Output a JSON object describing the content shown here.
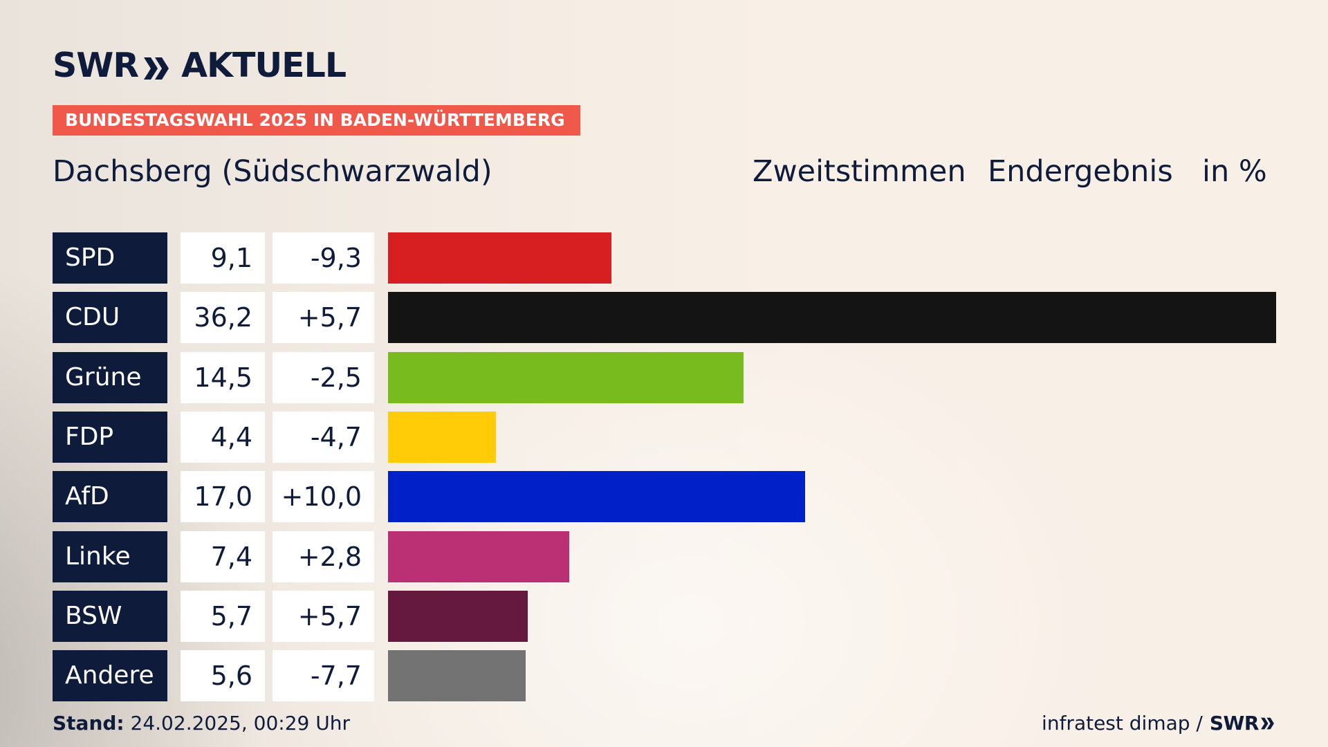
{
  "logo": {
    "brand": "SWR",
    "name": "AKTUELL"
  },
  "banner": "BUNDESTAGSWAHL 2025 IN BADEN-WÜRTTEMBERG",
  "region": "Dachsberg (Südschwarzwald)",
  "header": {
    "votes": "Zweitstimmen",
    "status": "Endergebnis",
    "unit": "in %"
  },
  "footer": {
    "stand_label": "Stand:",
    "stand_value": "24.02.2025, 00:29 Uhr",
    "source": "infratest dimap /",
    "source_brand": "SWR"
  },
  "chart_data": {
    "type": "bar",
    "orientation": "horizontal",
    "categories": [
      "SPD",
      "CDU",
      "Grüne",
      "FDP",
      "AfD",
      "Linke",
      "BSW",
      "Andere"
    ],
    "values": [
      9.1,
      36.2,
      14.5,
      4.4,
      17.0,
      7.4,
      5.7,
      5.6
    ],
    "value_labels": [
      "9,1",
      "36,2",
      "14,5",
      "4,4",
      "17,0",
      "7,4",
      "5,7",
      "5,6"
    ],
    "diff_labels": [
      "-9,3",
      "+5,7",
      "-2,5",
      "-4,7",
      "+10,0",
      "+2,8",
      "+5,7",
      "-7,7"
    ],
    "diffs": [
      -9.3,
      5.7,
      -2.5,
      -4.7,
      10.0,
      2.8,
      5.7,
      -7.7
    ],
    "colors": [
      "#d71f22",
      "#141414",
      "#78bb1e",
      "#ffcc07",
      "#0220c8",
      "#bb3074",
      "#66193f",
      "#737373"
    ],
    "xlim": [
      0,
      36.2
    ],
    "grid": false
  }
}
